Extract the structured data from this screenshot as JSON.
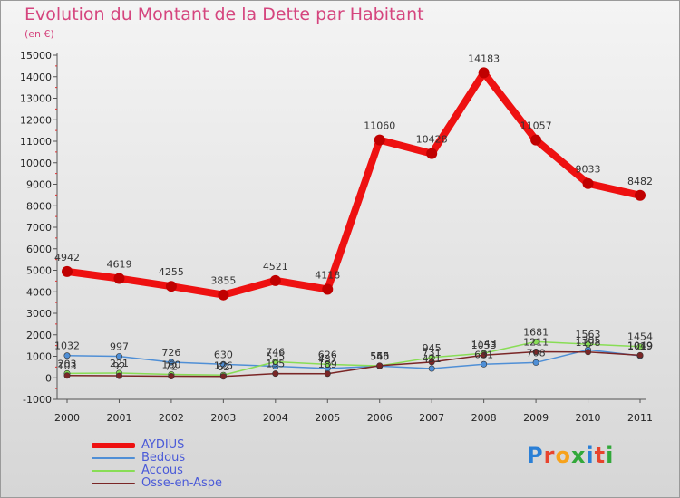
{
  "title": "Evolution du Montant de la Dette par Habitant",
  "unit": "(en €)",
  "brand": {
    "text": "Proxiti",
    "colors": [
      "#2a7fd6",
      "#e8432d",
      "#f7a21b",
      "#32a83a",
      "#2a7fd6",
      "#e8432d",
      "#32a83a"
    ]
  },
  "chart_data": {
    "type": "line",
    "x": [
      "2000",
      "2001",
      "2002",
      "2003",
      "2004",
      "2005",
      "2006",
      "2007",
      "2008",
      "2009",
      "2010",
      "2011"
    ],
    "ylim": [
      -1000,
      15000
    ],
    "yticks": [
      "-1000",
      "0",
      "1000",
      "2000",
      "3000",
      "4000",
      "5000",
      "6000",
      "7000",
      "8000",
      "9000",
      "10000",
      "11000",
      "12000",
      "13000",
      "14000",
      "15000"
    ],
    "grid": false,
    "legend_position": "bottom-left",
    "series": [
      {
        "name": "AYDIUS",
        "color": "#ee1111",
        "highlight": true,
        "values": [
          4942,
          4619,
          4255,
          3855,
          4521,
          4118,
          11060,
          10428,
          14183,
          11057,
          9033,
          8482
        ],
        "labels": [
          "4942",
          "4619",
          "4255",
          "3855",
          "4521",
          "4118",
          "11060",
          "10428",
          "14183",
          "11057",
          "9033",
          "8482"
        ]
      },
      {
        "name": "Bedous",
        "color": "#4f8fd6",
        "highlight": false,
        "values": [
          1032,
          997,
          726,
          630,
          535,
          437,
          540,
          431,
          631,
          708,
          1305,
          1019
        ],
        "labels": [
          "1032",
          "997",
          "726",
          "630",
          "535",
          "437",
          "540",
          "431",
          "631",
          "708",
          "1305",
          "1019"
        ]
      },
      {
        "name": "Accous",
        "color": "#88dd55",
        "highlight": false,
        "values": [
          203,
          221,
          160,
          126,
          746,
          626,
          556,
          945,
          1143,
          1681,
          1563,
          1454
        ],
        "labels": [
          "203",
          "221",
          "160",
          "126",
          "746",
          "626",
          "556",
          "945",
          "1143",
          "1681",
          "1563",
          "1454"
        ]
      },
      {
        "name": "Osse-en-Aspe",
        "color": "#7a2626",
        "highlight": false,
        "values": [
          103,
          92,
          72,
          62,
          195,
          189,
          565,
          731,
          1053,
          1211,
          1198,
          1049
        ],
        "labels": [
          "103",
          "92",
          "72",
          "62",
          "195",
          "189",
          "565",
          "731",
          "1053",
          "1211",
          "1198",
          "1049"
        ]
      }
    ]
  }
}
